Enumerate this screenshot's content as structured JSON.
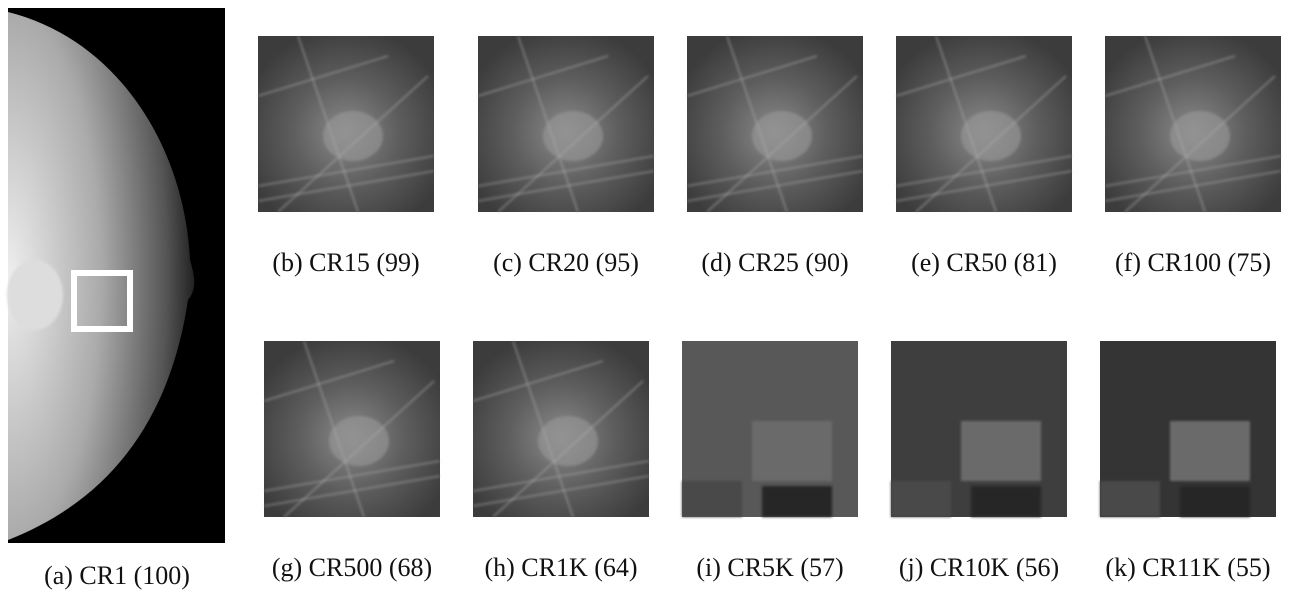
{
  "figure": {
    "panels": [
      {
        "caption": "(a) CR1 (100)"
      },
      {
        "caption": "(b) CR15 (99)"
      },
      {
        "caption": "(c) CR20 (95)"
      },
      {
        "caption": "(d) CR25 (90)"
      },
      {
        "caption": "(e) CR50 (81)"
      },
      {
        "caption": "(f) CR100 (75)"
      },
      {
        "caption": "(g) CR500 (68)"
      },
      {
        "caption": "(h) CR1K (64)"
      },
      {
        "caption": "(i) CR5K (57)"
      },
      {
        "caption": "(j) CR10K (56)"
      },
      {
        "caption": "(k) CR11K (55)"
      }
    ]
  }
}
